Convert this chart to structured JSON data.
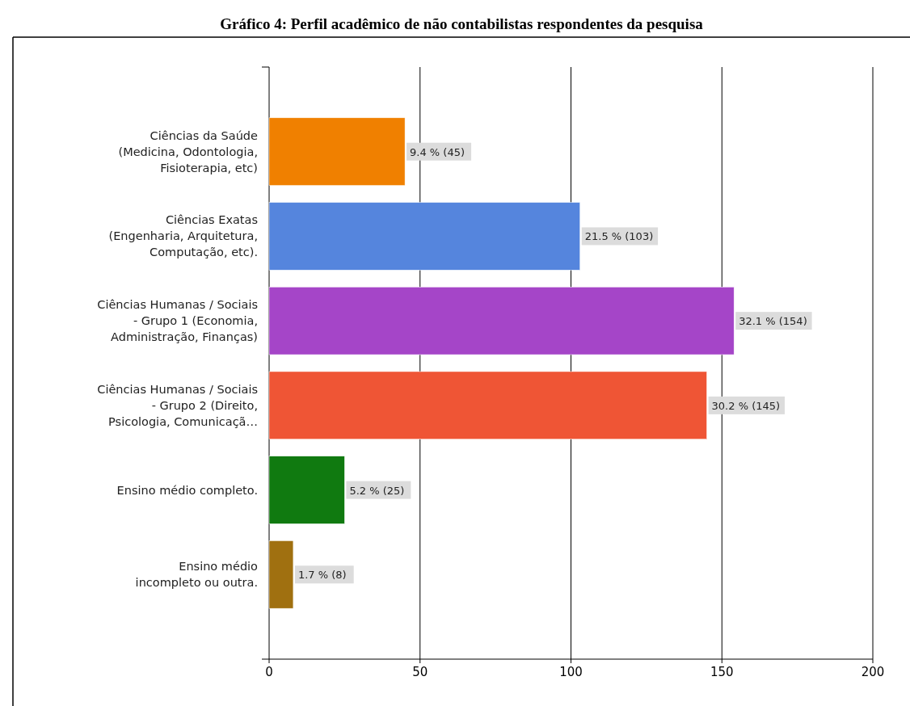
{
  "chart_data": {
    "type": "bar",
    "orientation": "horizontal",
    "title": "Gráfico 4: Perfil acadêmico de não contabilistas respondentes da pesquisa",
    "categories": [
      "Ciências da Saúde\n(Medicina, Odontologia,\nFisioterapia, etc)",
      "Ciências Exatas\n(Engenharia, Arquitetura,\nComputação, etc).",
      "Ciências Humanas / Sociais\n- Grupo 1 (Economia,\nAdministração, Finanças)",
      "Ciências Humanas / Sociais\n- Grupo 2 (Direito,\nPsicologia, Comunicaçã…",
      "Ensino médio completo.",
      "Ensino médio\nincompleto ou outra."
    ],
    "values": [
      45,
      103,
      154,
      145,
      25,
      8
    ],
    "colors": [
      "#f08000",
      "#5585dd",
      "#a545c8",
      "#ef5535",
      "#107a10",
      "#a07010"
    ],
    "value_labels": [
      "9.4 % (45)",
      "21.5 % (103)",
      "32.1 % (154)",
      "30.2 % (145)",
      "5.2 % (25)",
      "1.7 % (8)"
    ],
    "xlim": [
      0,
      200
    ],
    "xticks": [
      0,
      50,
      100,
      150,
      200
    ],
    "grid": "x"
  }
}
